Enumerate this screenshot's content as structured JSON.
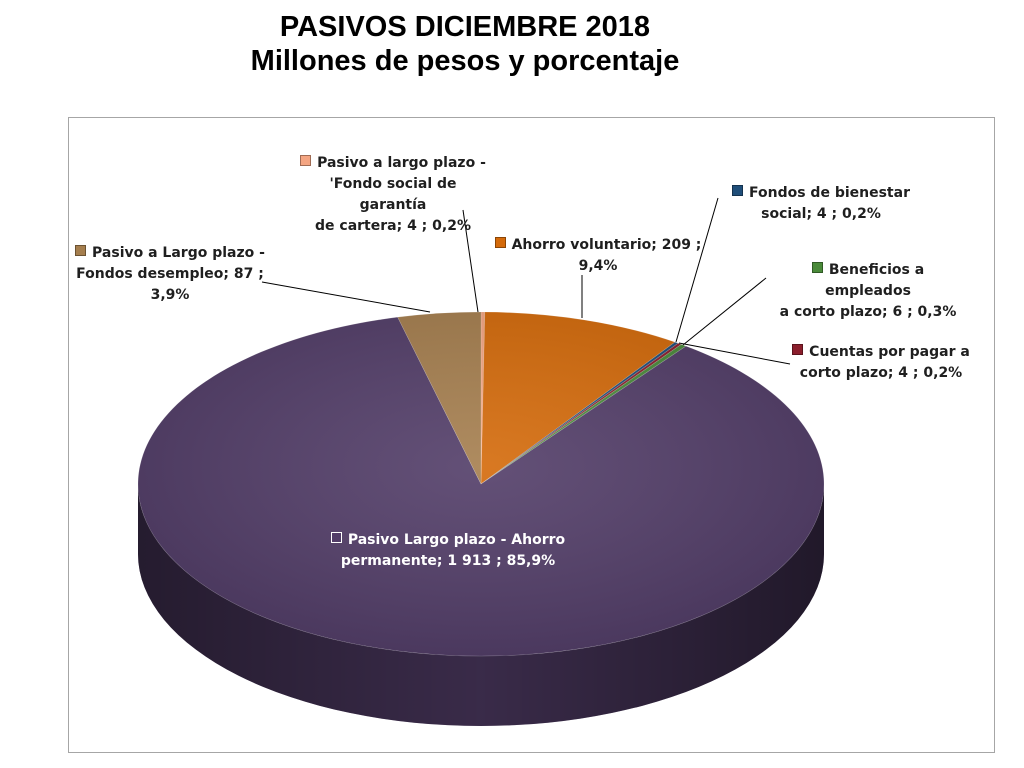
{
  "title": {
    "line1": "PASIVOS DICIEMBRE 2018",
    "line2": "Millones de pesos y porcentaje"
  },
  "chart_data": {
    "type": "pie",
    "title": "PASIVOS DICIEMBRE 2018 Millones de pesos y porcentaje",
    "style": "3d",
    "slices": [
      {
        "label_lines": [
          "Pasivo  a largo plazo -",
          "'Fondo social de garantía",
          "de cartera;  4 ; 0,2%"
        ],
        "value": 4,
        "percent": 0.2,
        "color": "#F4A582"
      },
      {
        "label_lines": [
          "Ahorro voluntario;  209 ;",
          "9,4%"
        ],
        "value": 209,
        "percent": 9.4,
        "color": "#D46A0A"
      },
      {
        "label_lines": [
          "Fondos de bienestar",
          "social;  4 ; 0,2%"
        ],
        "value": 4,
        "percent": 0.2,
        "color": "#1F4E79"
      },
      {
        "label_lines": [
          "Cuentas por pagar a",
          "corto plazo;  4 ; 0,2%"
        ],
        "value": 4,
        "percent": 0.2,
        "color": "#8B1E2C"
      },
      {
        "label_lines": [
          "Beneficios a empleados",
          "a corto plazo;  6 ; 0,3%"
        ],
        "value": 6,
        "percent": 0.3,
        "color": "#4A8A3A"
      },
      {
        "label_lines": [
          "Pasivo Largo plazo - Ahorro",
          "permanente;  1 913 ; 85,9%"
        ],
        "value": 1913,
        "percent": 85.9,
        "color": "#523D68"
      },
      {
        "label_lines": [
          "Pasivo a Largo plazo -",
          "Fondos desempleo;  87 ;",
          "3,9%"
        ],
        "value": 87,
        "percent": 3.9,
        "color": "#A57E4E"
      }
    ]
  }
}
